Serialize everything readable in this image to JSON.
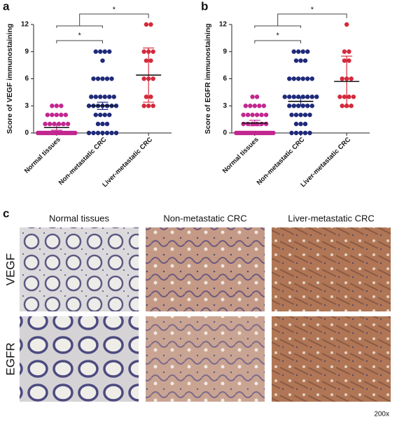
{
  "chart_data": [
    {
      "type": "dot",
      "panel": "a",
      "ylabel": "Score of VEGF immunostaining",
      "categories": [
        "Normal tissues",
        "Non-metastatic CRC",
        "Liver-metastatic CRC"
      ],
      "colors": [
        "#c2278f",
        "#1f2a7a",
        "#d42a3c"
      ],
      "values": [
        [
          0,
          0,
          0,
          0,
          0,
          0,
          0,
          0,
          0,
          0,
          0,
          0,
          0,
          0,
          0,
          0,
          0,
          0,
          0,
          0,
          0,
          0,
          1,
          1,
          1,
          1,
          1,
          1,
          2,
          2,
          2,
          2,
          2,
          3,
          3,
          3
        ],
        [
          0,
          0,
          0,
          0,
          0,
          0,
          0,
          1,
          1,
          1,
          2,
          2,
          2,
          2,
          3,
          3,
          3,
          3,
          3,
          3,
          3,
          4,
          4,
          4,
          4,
          4,
          4,
          6,
          6,
          6,
          6,
          6,
          8,
          9,
          9,
          9,
          9
        ],
        [
          3,
          3,
          3,
          4,
          4,
          6,
          6,
          6,
          8,
          8,
          9,
          9,
          9,
          12,
          12
        ]
      ],
      "means": [
        0.6,
        3,
        6.4
      ],
      "errors": [
        0.3,
        0.4,
        3
      ],
      "ylim": [
        0,
        12
      ],
      "yticks": [
        0,
        3,
        6,
        9,
        12
      ],
      "annotations": [
        "*",
        "*"
      ]
    },
    {
      "type": "dot",
      "panel": "b",
      "ylabel": "Score of EGFR immunostaining",
      "categories": [
        "Normal tissues",
        "Non-metastatic CRC",
        "Liver-metastatic CRC"
      ],
      "colors": [
        "#c2278f",
        "#1f2a7a",
        "#d42a3c"
      ],
      "values": [
        [
          0,
          0,
          0,
          0,
          0,
          0,
          0,
          0,
          0,
          0,
          0,
          0,
          0,
          0,
          0,
          0,
          0,
          0,
          0,
          0,
          1,
          1,
          1,
          1,
          1,
          1,
          2,
          2,
          2,
          2,
          2,
          2,
          3,
          3,
          3,
          3,
          3,
          4,
          4
        ],
        [
          0,
          0,
          0,
          0,
          0,
          1,
          1,
          1,
          2,
          2,
          2,
          2,
          2,
          3,
          3,
          3,
          3,
          3,
          3,
          4,
          4,
          4,
          4,
          4,
          4,
          4,
          4,
          6,
          6,
          6,
          6,
          6,
          6,
          8,
          8,
          8,
          9,
          9,
          9,
          9
        ],
        [
          3,
          3,
          3,
          4,
          4,
          4,
          4,
          6,
          6,
          6,
          8,
          8,
          9,
          9,
          12
        ]
      ],
      "means": [
        1.1,
        3.5,
        5.7
      ],
      "errors": [
        0.3,
        0.4,
        2.8
      ],
      "ylim": [
        0,
        12
      ],
      "yticks": [
        0,
        3,
        6,
        9,
        12
      ],
      "annotations": [
        "*",
        "*"
      ]
    }
  ],
  "image_panel": {
    "panel": "c",
    "columns": [
      "Normal tissues",
      "Non-metastatic CRC",
      "Liver-metastatic CRC"
    ],
    "rows": [
      "VEGF",
      "EGFR"
    ],
    "magnification": "200x"
  }
}
